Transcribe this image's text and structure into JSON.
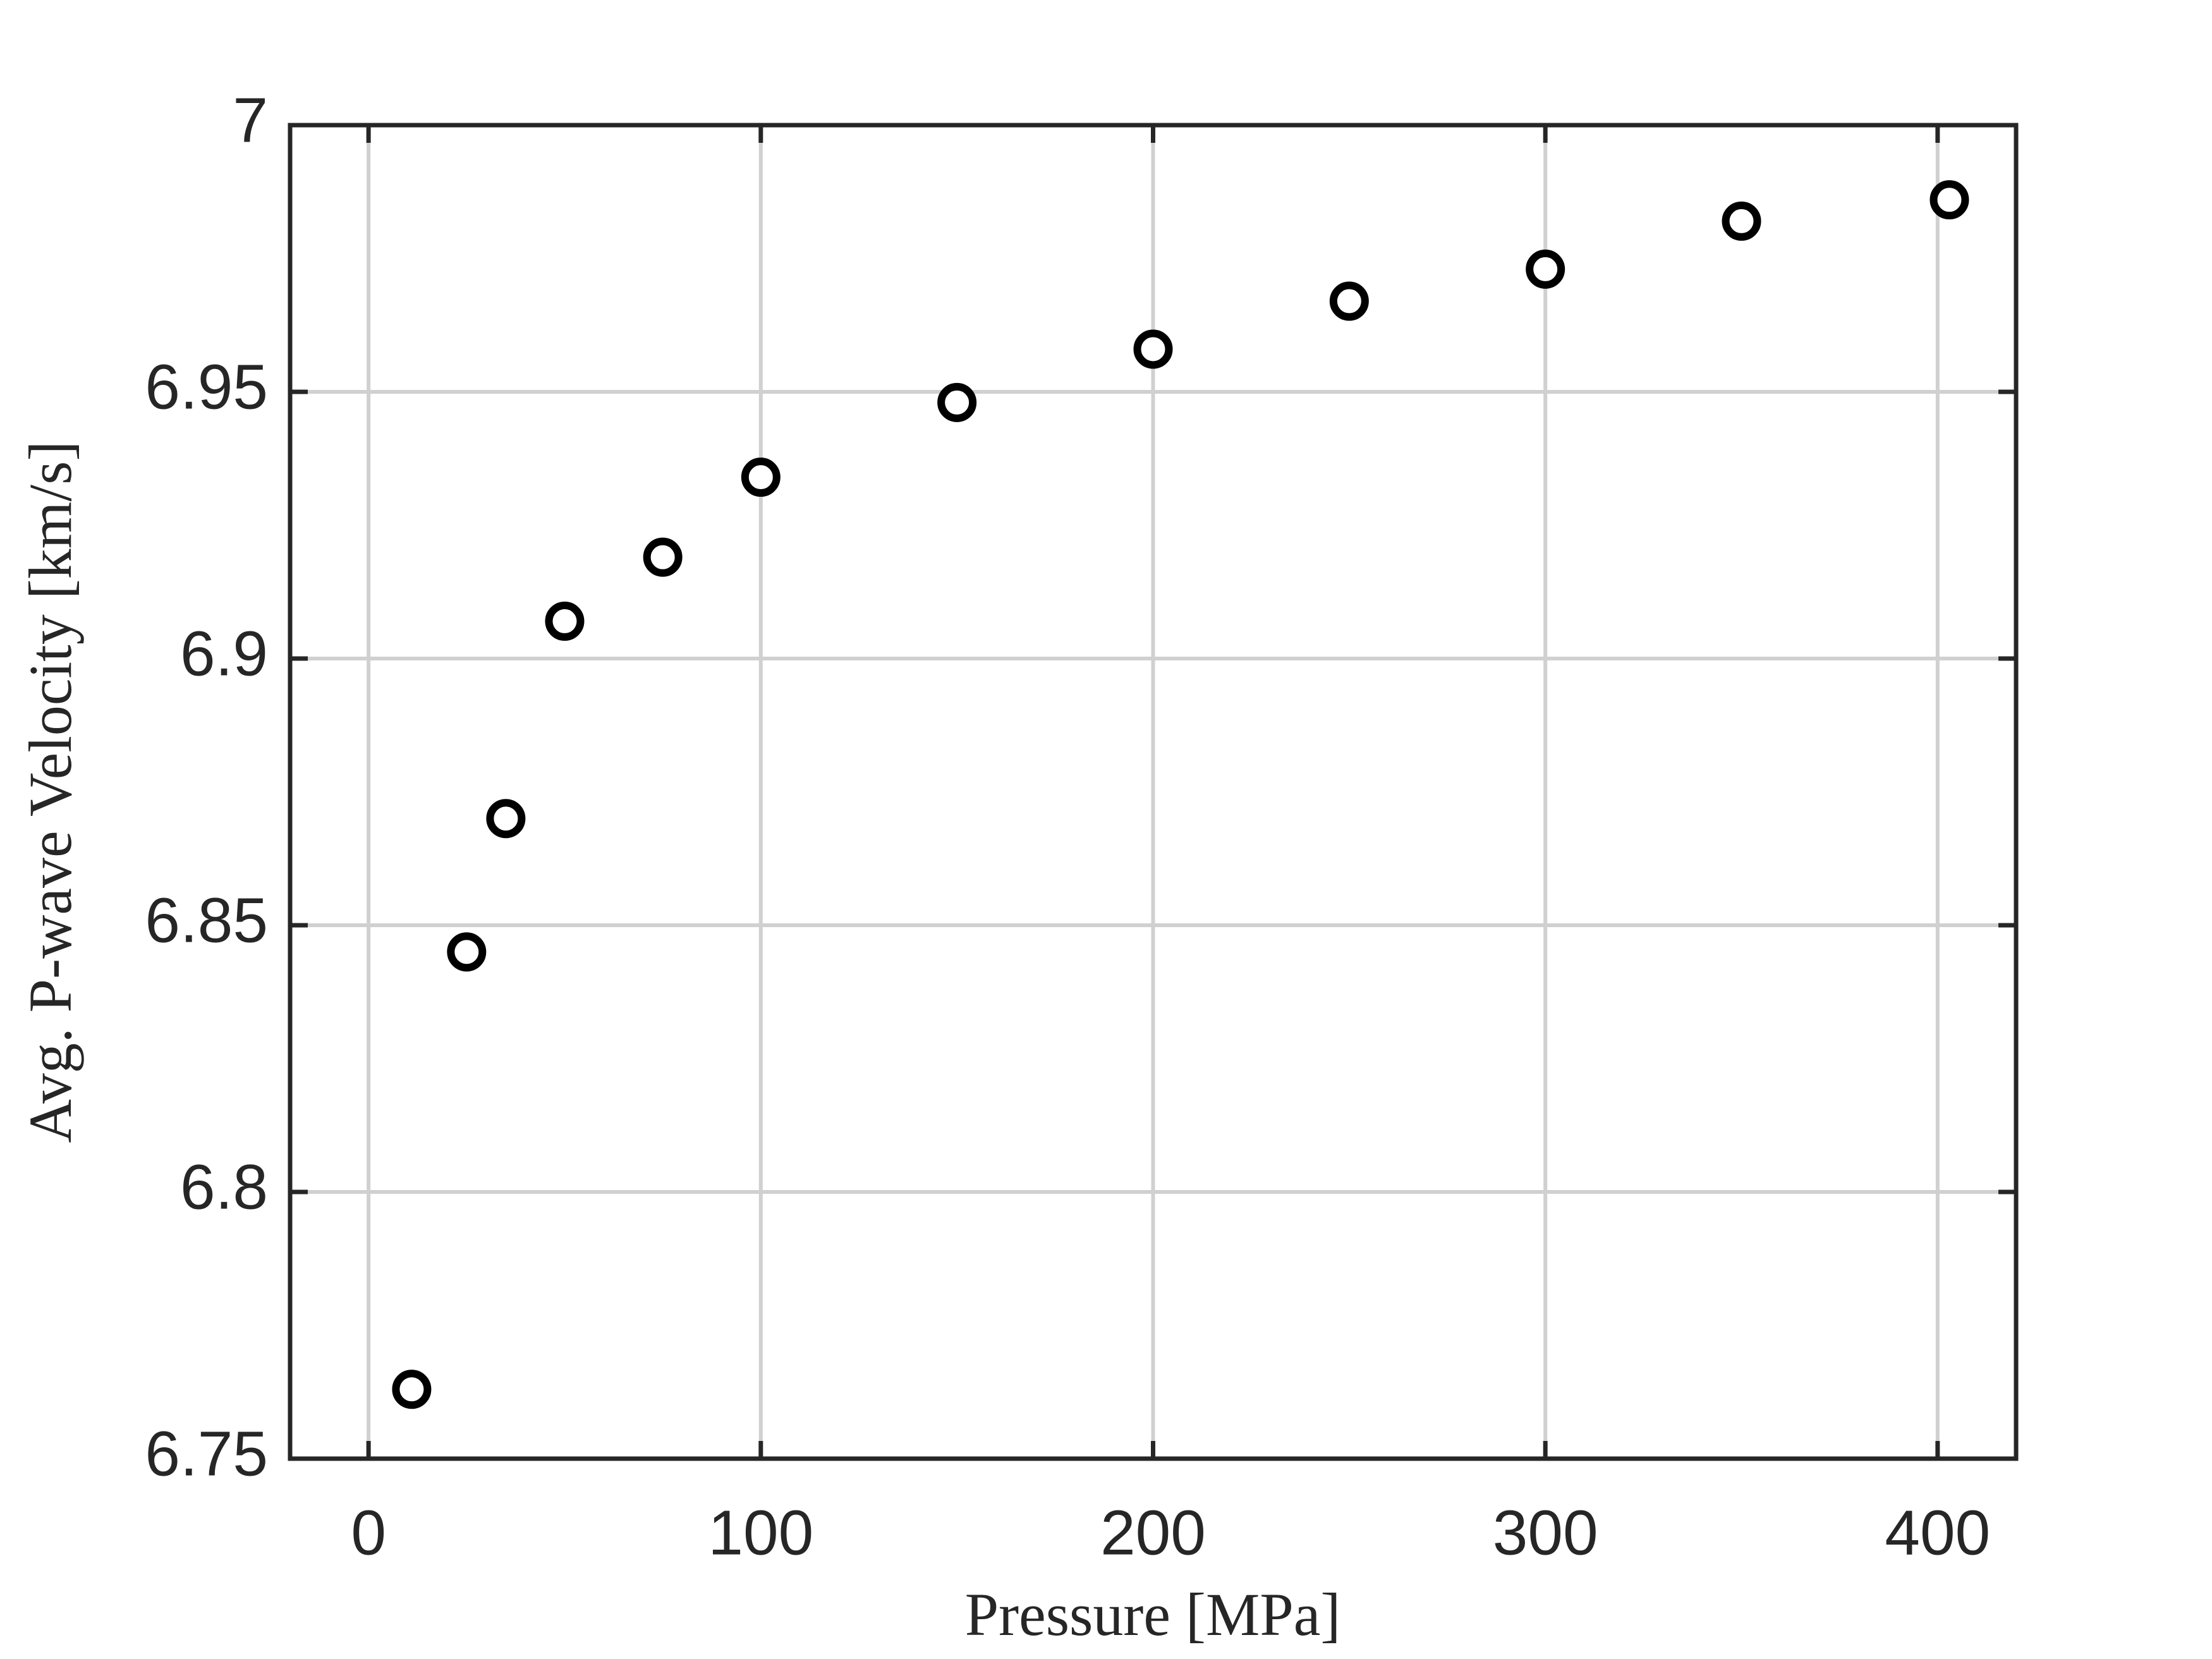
{
  "chart_data": {
    "type": "scatter",
    "xlabel": "Pressure [MPa]",
    "ylabel": "Avg. P-wave Velocity [km/s]",
    "x": [
      11,
      25,
      35,
      50,
      75,
      100,
      150,
      200,
      250,
      300,
      350,
      403
    ],
    "values": [
      6.763,
      6.845,
      6.87,
      6.907,
      6.919,
      6.934,
      6.948,
      6.958,
      6.967,
      6.973,
      6.982,
      6.986
    ],
    "color": "#000000",
    "xlim": [
      -20,
      420
    ],
    "xticks": [
      0,
      100,
      200,
      300,
      400
    ],
    "ylim": [
      6.75,
      7
    ],
    "yticks": [
      6.75,
      6.8,
      6.85,
      6.9,
      6.95,
      7
    ],
    "grid": true
  }
}
